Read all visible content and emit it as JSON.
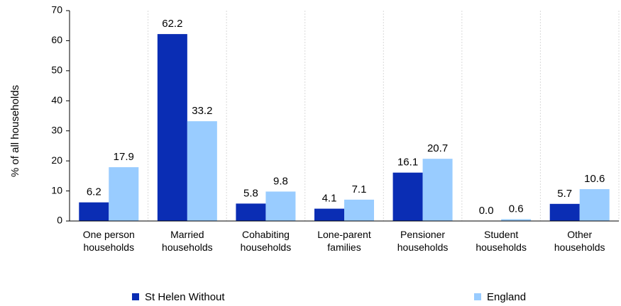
{
  "chart_data": {
    "type": "bar",
    "y_label": "% of all households",
    "categories": [
      "One person\nhouseholds",
      "Married\nhouseholds",
      "Cohabiting\nhouseholds",
      "Lone-parent\nfamilies",
      "Pensioner\nhouseholds",
      "Student\nhouseholds",
      "Other\nhouseholds"
    ],
    "series": [
      {
        "name": "St Helen Without",
        "color": "#0a2db4",
        "values": [
          6.2,
          62.2,
          5.8,
          4.1,
          16.1,
          0,
          5.7
        ],
        "value_labels": [
          "6.2",
          "62.2",
          "5.8",
          "4.1",
          "16.1",
          "0.0",
          "5.7"
        ]
      },
      {
        "name": "England",
        "color": "#99ccff",
        "values": [
          17.9,
          33.2,
          9.8,
          7.1,
          20.7,
          0.6,
          10.6
        ]
      }
    ],
    "ylim": [
      0,
      70
    ],
    "yticks": [
      0,
      10,
      20,
      30,
      40,
      50,
      60,
      70
    ],
    "grid": true,
    "legend": "bottom"
  }
}
